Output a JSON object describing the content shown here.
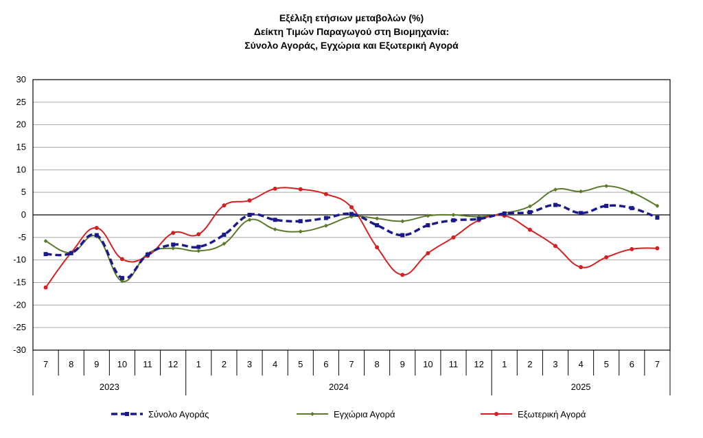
{
  "chart_data": {
    "type": "line",
    "title": [
      "Εξέλιξη ετήσιων μεταβολών (%)",
      "Δείκτη Τιμών Παραγωγού στη Βιομηχανία:",
      "Σύνολο Αγοράς, Εγχώρια και Εξωτερική Αγορά"
    ],
    "categories": [
      "7",
      "8",
      "9",
      "10",
      "11",
      "12",
      "1",
      "2",
      "3",
      "4",
      "5",
      "6",
      "7",
      "8",
      "9",
      "10",
      "11",
      "12",
      "1",
      "2",
      "3",
      "4",
      "5",
      "6",
      "7"
    ],
    "year_groups": [
      {
        "label": "2023",
        "start": 0,
        "end": 5
      },
      {
        "label": "2024",
        "start": 6,
        "end": 17
      },
      {
        "label": "2025",
        "start": 18,
        "end": 24
      }
    ],
    "ylim": [
      -30,
      30
    ],
    "yticks": [
      30,
      25,
      20,
      15,
      10,
      5,
      0,
      -5,
      -10,
      -15,
      -20,
      -25,
      -30
    ],
    "grid": true,
    "legend_position": "bottom",
    "series": [
      {
        "name": "Σύνολο Αγοράς",
        "color": "#1a1a8c",
        "style": "dashed-square",
        "values": [
          -8.7,
          -8.5,
          -4.5,
          -14.0,
          -8.8,
          -6.6,
          -7.1,
          -4.4,
          0.0,
          -1.1,
          -1.4,
          -0.7,
          0.2,
          -2.3,
          -4.5,
          -2.3,
          -1.2,
          -0.9,
          0.3,
          0.6,
          2.2,
          0.4,
          2.0,
          1.5,
          -0.6
        ]
      },
      {
        "name": "Εγχώρια Αγορά",
        "color": "#5a7a2a",
        "style": "solid-diamond",
        "values": [
          -5.8,
          -8.4,
          -4.8,
          -14.7,
          -8.6,
          -7.4,
          -8.0,
          -6.4,
          -1.1,
          -3.2,
          -3.7,
          -2.4,
          -0.4,
          -0.8,
          -1.4,
          -0.2,
          0.0,
          -0.4,
          0.4,
          1.9,
          5.6,
          5.2,
          6.4,
          5.0,
          2.0
        ]
      },
      {
        "name": "Εξωτερική Αγορά",
        "color": "#d42020",
        "style": "solid-circle",
        "values": [
          -16.1,
          -8.4,
          -2.9,
          -9.8,
          -9.1,
          -4.0,
          -4.3,
          2.1,
          3.2,
          5.8,
          5.7,
          4.6,
          1.7,
          -7.2,
          -13.3,
          -8.5,
          -5.0,
          -1.2,
          -0.2,
          -3.3,
          -6.9,
          -11.6,
          -9.4,
          -7.6,
          -7.4
        ]
      }
    ]
  }
}
